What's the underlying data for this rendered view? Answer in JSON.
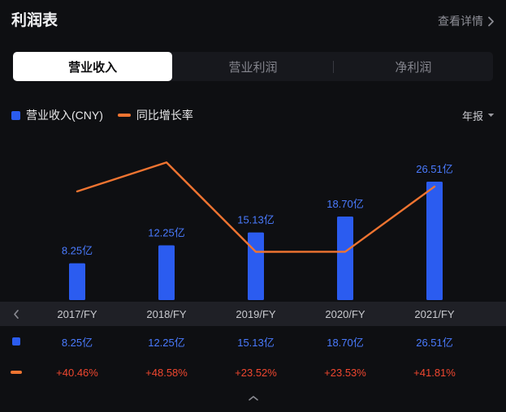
{
  "header": {
    "title": "利润表",
    "details_label": "查看详情"
  },
  "tabs": [
    {
      "label": "营业收入",
      "selected": true
    },
    {
      "label": "营业利润",
      "selected": false
    },
    {
      "label": "净利润",
      "selected": false
    }
  ],
  "legend": {
    "bar_label": "营业收入(CNY)",
    "line_label": "同比增长率",
    "period_label": "年报"
  },
  "colors": {
    "background": "#0e0f12",
    "bar": "#2b5cf0",
    "bar_value_label": "#4a7bff",
    "line": "#ef7431",
    "percent": "#f0472f",
    "tab_selected_bg": "#ffffff",
    "muted_text": "#8d8e96"
  },
  "chart_data": {
    "type": "bar",
    "subtype": "bar+line combo",
    "categories": [
      "2017/FY",
      "2018/FY",
      "2019/FY",
      "2020/FY",
      "2021/FY"
    ],
    "series": [
      {
        "name": "营业收入(CNY)",
        "type": "bar",
        "unit": "亿 CNY",
        "values": [
          8.25,
          12.25,
          15.13,
          18.7,
          26.51
        ],
        "labels": [
          "8.25亿",
          "12.25亿",
          "15.13亿",
          "18.70亿",
          "26.51亿"
        ]
      },
      {
        "name": "同比增长率",
        "type": "line",
        "unit": "%",
        "values": [
          40.46,
          48.58,
          23.52,
          23.53,
          41.81
        ],
        "labels": [
          "+40.46%",
          "+48.58%",
          "+23.52%",
          "+23.53%",
          "+41.81%"
        ]
      }
    ],
    "legend_position": "top-left",
    "grid": false,
    "value_labels_shown": true
  }
}
